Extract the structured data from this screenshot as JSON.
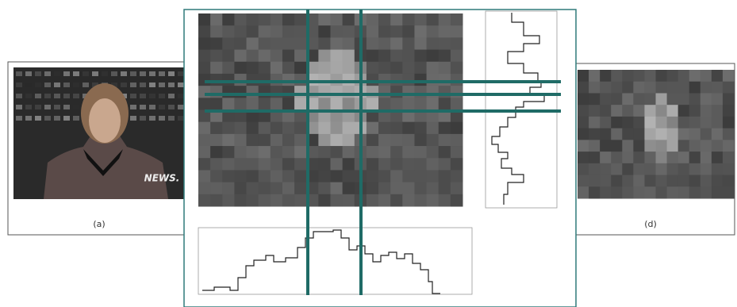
{
  "panels": [
    {
      "label": "(a)"
    },
    {
      "label": "(d)"
    }
  ],
  "overlay_text": "NEWS."
}
